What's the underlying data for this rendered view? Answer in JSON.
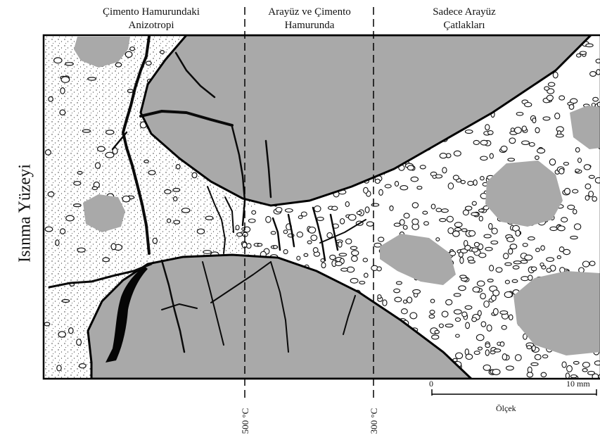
{
  "zones": [
    {
      "line1": "Çimento Hamurundaki",
      "line2": "Anizotropi"
    },
    {
      "line1": "Arayüz ve Çimento",
      "line2": "Hamurunda"
    },
    {
      "line1": "Sadece Arayüz",
      "line2": "Çatlakları"
    }
  ],
  "side_label": "Isınma Yüzeyi",
  "temperatures": [
    "500 °C",
    "300 °C"
  ],
  "scale": {
    "start": "0",
    "end": "10 mm",
    "label": "Ölçek"
  },
  "colors": {
    "aggregate": "#a9a9a9",
    "crack": "#0a0a0a",
    "paste": "#ffffff"
  }
}
